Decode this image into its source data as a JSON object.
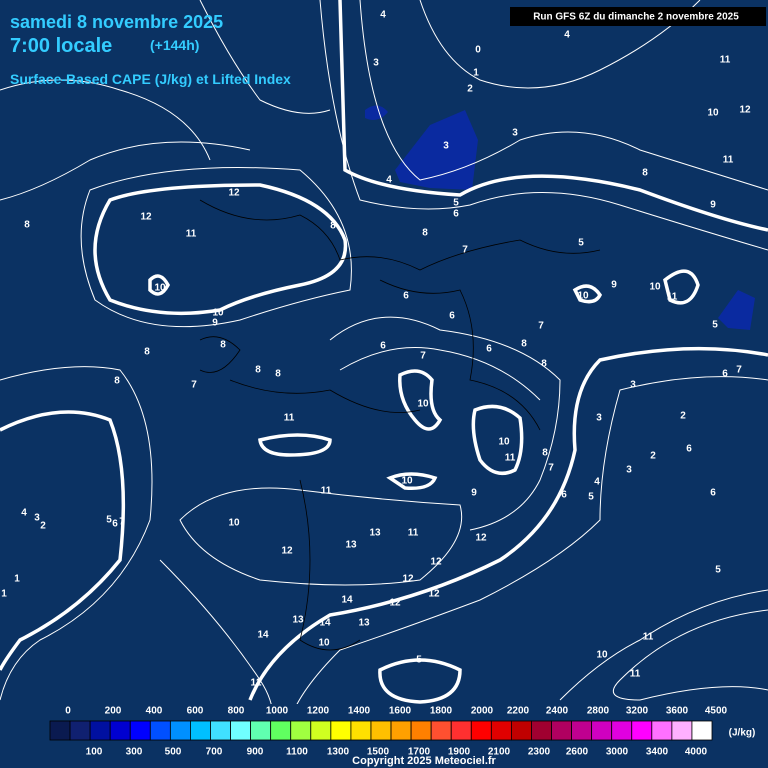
{
  "header": {
    "date": "samedi 8 novembre 2025",
    "time": "7:00 locale",
    "lead": "(+144h)",
    "parameter": "Surface-Based CAPE (J/kg) et Lifted Index",
    "run": "Run GFS 6Z du dimanche 2 novembre 2025"
  },
  "contour_labels": [
    4,
    4,
    0,
    3,
    1,
    2,
    11,
    10,
    12,
    3,
    3,
    11,
    4,
    8,
    5,
    6,
    9,
    12,
    12,
    11,
    8,
    8,
    8,
    7,
    5,
    10,
    6,
    10,
    9,
    10,
    11,
    10,
    9,
    6,
    5,
    7,
    8,
    8,
    6,
    7,
    6,
    8,
    8,
    8,
    8,
    8,
    7,
    3,
    6,
    7,
    10,
    11,
    3,
    2,
    6,
    10,
    11,
    8,
    7,
    2,
    3,
    4,
    5,
    6,
    6,
    10,
    11,
    9,
    4,
    3,
    2,
    5,
    6,
    7,
    10,
    13,
    11,
    12,
    13,
    12,
    12,
    1,
    12,
    5,
    12,
    12,
    14,
    1,
    13,
    14,
    13,
    14,
    10,
    11,
    10,
    5,
    11,
    12
  ],
  "legend": {
    "unit": "(J/kg)",
    "top_labels": [
      0,
      200,
      400,
      600,
      800,
      1000,
      1200,
      1400,
      1600,
      1800,
      2000,
      2200,
      2400,
      2800,
      3200,
      3600,
      4500
    ],
    "bottom_labels": [
      100,
      300,
      500,
      700,
      900,
      1100,
      1300,
      1500,
      1700,
      1900,
      2100,
      2300,
      2600,
      3000,
      3400,
      4000
    ],
    "colors": [
      "#0a1a50",
      "#102070",
      "#0010a0",
      "#0000d0",
      "#0000ff",
      "#0050ff",
      "#0090ff",
      "#00c0ff",
      "#40e0ff",
      "#70ffff",
      "#60ffb0",
      "#60ff60",
      "#a0ff40",
      "#d0ff20",
      "#ffff00",
      "#ffe000",
      "#ffc000",
      "#ffa000",
      "#ff8000",
      "#ff5030",
      "#ff3030",
      "#ff0000",
      "#e00000",
      "#c00000",
      "#a00030",
      "#b00060",
      "#c00090",
      "#d000c0",
      "#e000e0",
      "#ff00ff",
      "#ff70ff",
      "#ffb0ff",
      "#ffffff"
    ]
  },
  "copyright": "Copyright 2025 Meteociel.fr"
}
